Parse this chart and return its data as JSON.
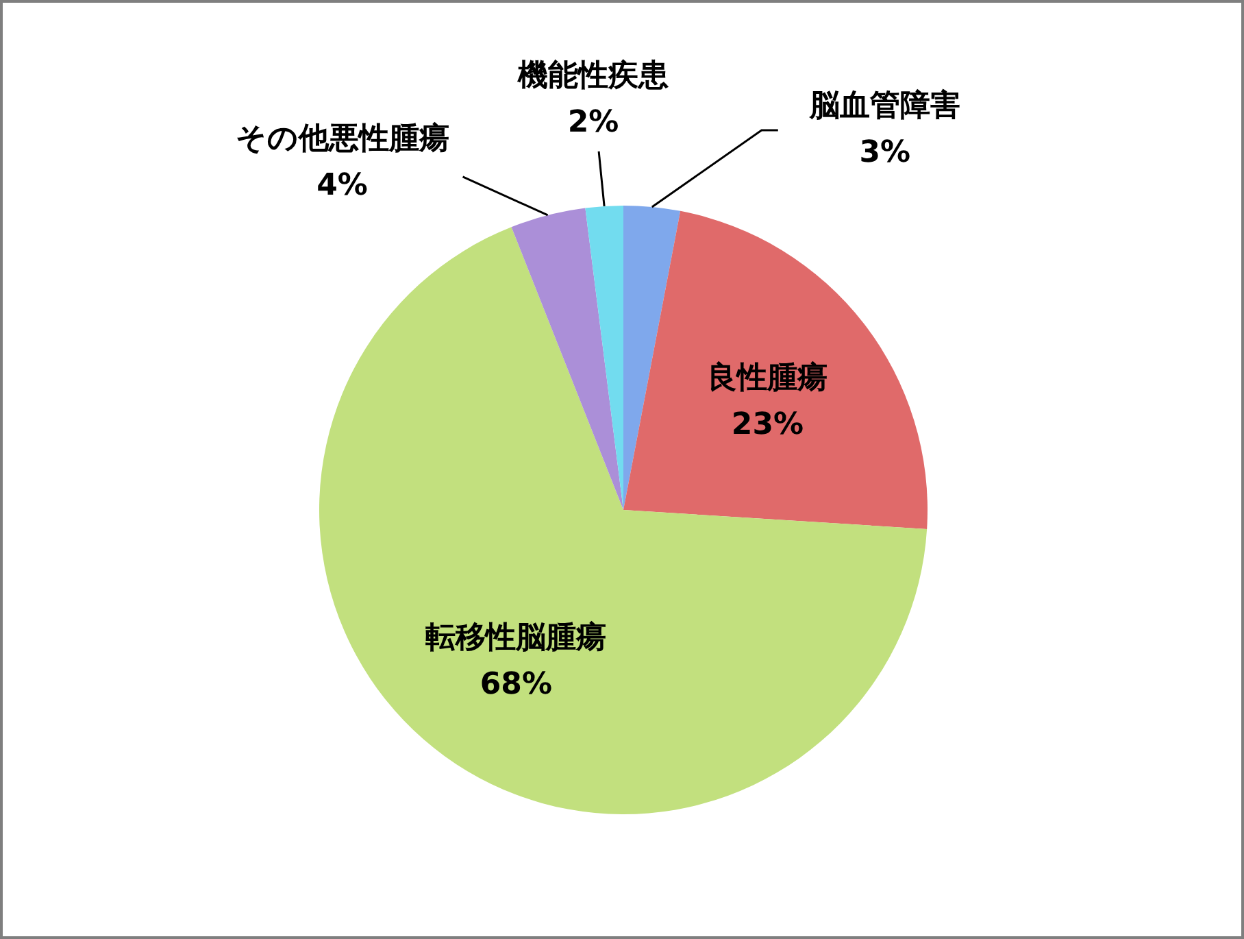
{
  "chart_data": {
    "type": "pie",
    "categories": [
      "脳血管障害",
      "良性腫瘍",
      "転移性脳腫瘍",
      "その他悪性腫瘍",
      "機能性疾患"
    ],
    "values": [
      3,
      23,
      68,
      4,
      2
    ],
    "value_labels": [
      "3%",
      "23%",
      "68%",
      "4%",
      "2%"
    ],
    "colors": [
      "#7fa8ec",
      "#e06a6a",
      "#c2e07e",
      "#ab8fd8",
      "#72dcef"
    ],
    "legend": false
  }
}
